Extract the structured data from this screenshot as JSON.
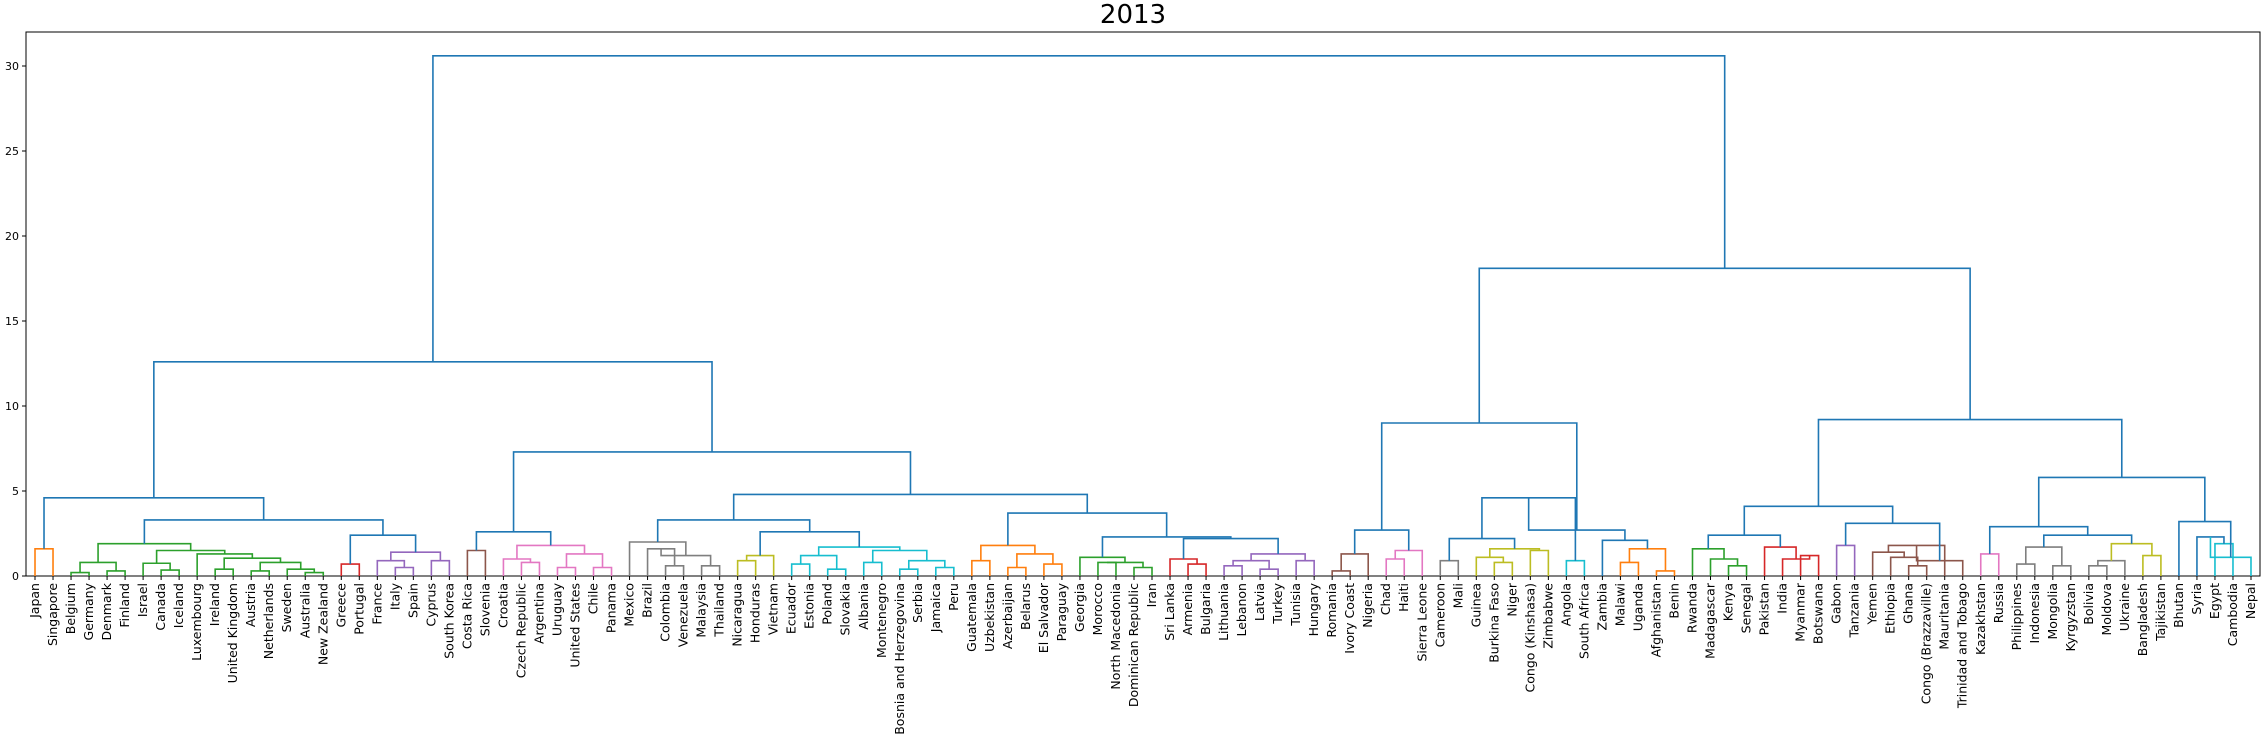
{
  "chart_data": {
    "type": "dendrogram",
    "title": "2013",
    "xlabel": "",
    "ylabel": "",
    "ylim": [
      0,
      32
    ],
    "yticks": [
      0,
      5,
      10,
      15,
      20,
      25,
      30
    ],
    "grid": false,
    "link_color_default": "#1f77b4",
    "cluster_colors": {
      "c1": "#ff7f0e",
      "c2": "#2ca02c",
      "c3": "#d62728",
      "c4": "#9467bd",
      "c5": "#8c564b",
      "c6": "#e377c2",
      "c7": "#7f7f7f",
      "c8": "#bcbd22",
      "c9": "#17becf"
    },
    "leaves": [
      "Japan",
      "Singapore",
      "Belgium",
      "Germany",
      "Denmark",
      "Finland",
      "Israel",
      "Canada",
      "Iceland",
      "Luxembourg",
      "Ireland",
      "United Kingdom",
      "Austria",
      "Netherlands",
      "Sweden",
      "Australia",
      "New Zealand",
      "Greece",
      "Portugal",
      "France",
      "Italy",
      "Spain",
      "Cyprus",
      "South Korea",
      "Costa Rica",
      "Slovenia",
      "Croatia",
      "Czech Republic",
      "Argentina",
      "Uruguay",
      "United States",
      "Chile",
      "Panama",
      "Mexico",
      "Brazil",
      "Colombia",
      "Venezuela",
      "Malaysia",
      "Thailand",
      "Nicaragua",
      "Honduras",
      "Vietnam",
      "Ecuador",
      "Estonia",
      "Poland",
      "Slovakia",
      "Albania",
      "Montenegro",
      "Bosnia and Herzegovina",
      "Serbia",
      "Jamaica",
      "Peru",
      "Guatemala",
      "Uzbekistan",
      "Azerbaijan",
      "Belarus",
      "El Salvador",
      "Paraguay",
      "Georgia",
      "Morocco",
      "North Macedonia",
      "Dominican Republic",
      "Iran",
      "Sri Lanka",
      "Armenia",
      "Bulgaria",
      "Lithuania",
      "Lebanon",
      "Latvia",
      "Turkey",
      "Tunisia",
      "Hungary",
      "Romania",
      "Ivory Coast",
      "Nigeria",
      "Chad",
      "Haiti",
      "Sierra Leone",
      "Cameroon",
      "Mali",
      "Guinea",
      "Burkina Faso",
      "Niger",
      "Congo (Kinshasa)",
      "Zimbabwe",
      "Angola",
      "South Africa",
      "Zambia",
      "Malawi",
      "Uganda",
      "Afghanistan",
      "Benin",
      "Rwanda",
      "Madagascar",
      "Kenya",
      "Senegal",
      "Pakistan",
      "India",
      "Myanmar",
      "Botswana",
      "Gabon",
      "Tanzania",
      "Yemen",
      "Ethiopia",
      "Ghana",
      "Congo (Brazzaville)",
      "Mauritania",
      "Trinidad and Tobago",
      "Kazakhstan",
      "Russia",
      "Philippines",
      "Indonesia",
      "Mongolia",
      "Kyrgyzstan",
      "Bolivia",
      "Moldova",
      "Ukraine",
      "Bangladesh",
      "Tajikistan",
      "Bhutan",
      "Syria",
      "Egypt",
      "Cambodia",
      "Nepal"
    ],
    "merges": [
      [
        "Japan",
        "Singapore",
        1.6,
        "c1"
      ],
      [
        "Belgium",
        "Germany",
        0.2,
        "c2"
      ],
      [
        "Denmark",
        "Finland",
        0.3,
        "c2"
      ],
      [
        "m2",
        "m3",
        0.8,
        "c2"
      ],
      [
        "Canada",
        "Iceland",
        0.35,
        "c2"
      ],
      [
        "Israel",
        "m5",
        0.75,
        "c2"
      ],
      [
        "Ireland",
        "United Kingdom",
        0.4,
        "c2"
      ],
      [
        "Austria",
        "Netherlands",
        0.3,
        "c2"
      ],
      [
        "Australia",
        "New Zealand",
        0.2,
        "c2"
      ],
      [
        "Sweden",
        "m9",
        0.4,
        "c2"
      ],
      [
        "m8",
        "m10",
        0.8,
        "c2"
      ],
      [
        "m7",
        "m11",
        1.05,
        "c2"
      ],
      [
        "Luxembourg",
        "m12",
        1.3,
        "c2"
      ],
      [
        "m6",
        "m13",
        1.5,
        "c2"
      ],
      [
        "m4",
        "m14",
        1.9,
        "c2"
      ],
      [
        "Greece",
        "Portugal",
        0.7,
        "c3"
      ],
      [
        "Italy",
        "Spain",
        0.5,
        "c4"
      ],
      [
        "France",
        "m17",
        0.9,
        "c4"
      ],
      [
        "Cyprus",
        "South Korea",
        0.9,
        "c4"
      ],
      [
        "m18",
        "m19",
        1.4,
        "c4"
      ],
      [
        "m16",
        "m20",
        2.4,
        null
      ],
      [
        "m15",
        "m21",
        3.3,
        null
      ],
      [
        "m1",
        "m22",
        4.6,
        null
      ],
      [
        "Costa Rica",
        "Slovenia",
        1.5,
        "c5"
      ],
      [
        "Czech Republic",
        "Argentina",
        0.8,
        "c6"
      ],
      [
        "Croatia",
        "m25",
        1.0,
        "c6"
      ],
      [
        "Uruguay",
        "United States",
        0.5,
        "c6"
      ],
      [
        "Chile",
        "Panama",
        0.5,
        "c6"
      ],
      [
        "m27",
        "m28",
        1.3,
        "c6"
      ],
      [
        "m26",
        "m29",
        1.8,
        "c6"
      ],
      [
        "m24",
        "m30",
        2.6,
        null
      ],
      [
        "Colombia",
        "Venezuela",
        0.6,
        "c7"
      ],
      [
        "Brazil",
        "m32",
        1.6,
        "c7"
      ],
      [
        "Malaysia",
        "Thailand",
        0.6,
        "c7"
      ],
      [
        "m33",
        "m34",
        1.2,
        "c7"
      ],
      [
        "Mexico",
        "m35",
        2.0,
        "c7"
      ],
      [
        "Nicaragua",
        "Honduras",
        0.9,
        "c8"
      ],
      [
        "Vietnam",
        "m37",
        1.2,
        "c8"
      ],
      [
        "Poland",
        "Slovakia",
        0.4,
        "c9"
      ],
      [
        "Ecuador",
        "Estonia",
        0.7,
        "c9"
      ],
      [
        "m40",
        "m39",
        1.2,
        "c9"
      ],
      [
        "Albania",
        "Montenegro",
        0.8,
        "c9"
      ],
      [
        "Jamaica",
        "Peru",
        0.5,
        "c9"
      ],
      [
        "Bosnia and Herzegovina",
        "Serbia",
        0.4,
        "c9"
      ],
      [
        "m44",
        "m43",
        0.9,
        "c9"
      ],
      [
        "m42",
        "m45",
        1.5,
        "c9"
      ],
      [
        "m41",
        "m46",
        1.7,
        "c9"
      ],
      [
        "m38",
        "m47",
        2.6,
        null
      ],
      [
        "m36",
        "m48",
        3.3,
        null
      ],
      [
        "Guatemala",
        "Uzbekistan",
        0.9,
        "c1"
      ],
      [
        "Azerbaijan",
        "Belarus",
        0.5,
        "c1"
      ],
      [
        "El Salvador",
        "Paraguay",
        0.7,
        "c1"
      ],
      [
        "m51",
        "m52",
        1.3,
        "c1"
      ],
      [
        "m50",
        "m53",
        1.8,
        "c1"
      ],
      [
        "Morocco",
        "North Macedonia",
        0.8,
        "c2"
      ],
      [
        "Dominican Republic",
        "Iran",
        0.5,
        "c2"
      ],
      [
        "m55",
        "m56",
        0.8,
        "c2"
      ],
      [
        "Georgia",
        "m57",
        1.1,
        "c2"
      ],
      [
        "Armenia",
        "Bulgaria",
        0.7,
        "c3"
      ],
      [
        "Sri Lanka",
        "m59",
        1.0,
        "c3"
      ],
      [
        "Lithuania",
        "Lebanon",
        0.6,
        "c4"
      ],
      [
        "Latvia",
        "Turkey",
        0.4,
        "c4"
      ],
      [
        "m61",
        "m62",
        0.9,
        "c4"
      ],
      [
        "Tunisia",
        "Hungary",
        0.9,
        "c4"
      ],
      [
        "m63",
        "m64",
        1.3,
        "c4"
      ],
      [
        "m60",
        "m65",
        2.2,
        null
      ],
      [
        "m58",
        "m66",
        2.3,
        null
      ],
      [
        "m54",
        "m67",
        3.7,
        null
      ],
      [
        "m49",
        "m68",
        4.8,
        null
      ],
      [
        "m31",
        "m69",
        7.3,
        null
      ],
      [
        "m23",
        "m70",
        12.6,
        null
      ],
      [
        "Romania",
        "Ivory Coast",
        0.3,
        "c5"
      ],
      [
        "Nigeria",
        "m72",
        1.3,
        "c5"
      ],
      [
        "Chad",
        "Haiti",
        1.0,
        "c6"
      ],
      [
        "Sierra Leone",
        "m74",
        1.5,
        "c6"
      ],
      [
        "m73",
        "m75",
        2.7,
        null
      ],
      [
        "Cameroon",
        "Mali",
        0.9,
        "c7"
      ],
      [
        "Burkina Faso",
        "Niger",
        0.8,
        "c8"
      ],
      [
        "Guinea",
        "m78",
        1.1,
        "c8"
      ],
      [
        "Congo (Kinshasa)",
        "Zimbabwe",
        1.5,
        "c8"
      ],
      [
        "m79",
        "m80",
        1.6,
        "c8"
      ],
      [
        "m77",
        "m81",
        2.2,
        null
      ],
      [
        "Angola",
        "South Africa",
        0.9,
        "c9"
      ],
      [
        "m82",
        "m83",
        4.6,
        null
      ],
      [
        "Malawi",
        "Uganda",
        0.8,
        "c1"
      ],
      [
        "Afghanistan",
        "Benin",
        0.3,
        "c1"
      ],
      [
        "m85",
        "m86",
        1.6,
        "c1"
      ],
      [
        "Zambia",
        "m87",
        2.1,
        null
      ],
      [
        "m84",
        "m88",
        2.7,
        null
      ],
      [
        "m76",
        "m89",
        9.0,
        null
      ],
      [
        "Kenya",
        "Senegal",
        0.6,
        "c2"
      ],
      [
        "Madagascar",
        "m91",
        1.0,
        "c2"
      ],
      [
        "Rwanda",
        "m92",
        1.6,
        "c2"
      ],
      [
        "Myanmar",
        "Botswana",
        1.2,
        "c3"
      ],
      [
        "India",
        "m94",
        1.0,
        "c3"
      ],
      [
        "Pakistan",
        "m95",
        1.7,
        "c3"
      ],
      [
        "m93",
        "m96",
        2.4,
        null
      ],
      [
        "Gabon",
        "Tanzania",
        1.8,
        "c4"
      ],
      [
        "Ghana",
        "Congo (Brazzaville)",
        0.6,
        "c5"
      ],
      [
        "Ethiopia",
        "m99",
        1.1,
        "c5"
      ],
      [
        "Yemen",
        "m100",
        1.4,
        "c5"
      ],
      [
        "m101",
        "Mauritania",
        1.8,
        "c5"
      ],
      [
        "m102",
        "Trinidad and Tobago",
        0.9,
        "c5"
      ],
      [
        "m98",
        "m103",
        3.1,
        null
      ],
      [
        "m97",
        "m104",
        4.1,
        null
      ],
      [
        "Kazakhstan",
        "Russia",
        1.3,
        "c6"
      ],
      [
        "Philippines",
        "Indonesia",
        0.7,
        "c7"
      ],
      [
        "Mongolia",
        "Kyrgyzstan",
        0.6,
        "c7"
      ],
      [
        "m107",
        "m108",
        1.7,
        "c7"
      ],
      [
        "Bolivia",
        "Moldova",
        0.6,
        "c7"
      ],
      [
        "Ukraine",
        "m110",
        0.9,
        "c7"
      ],
      [
        "Bangladesh",
        "Tajikistan",
        1.2,
        "c8"
      ],
      [
        "m111",
        "m112",
        1.9,
        "c8"
      ],
      [
        "m109",
        "m113",
        2.4,
        null
      ],
      [
        "m106",
        "m114",
        2.9,
        null
      ],
      [
        "Egypt",
        "Cambodia",
        1.9,
        "c9"
      ],
      [
        "Syria",
        "m116",
        2.3,
        null
      ],
      [
        "m117",
        "Nepal",
        1.1,
        "c9"
      ],
      [
        "Bhutan",
        "m118",
        3.2,
        null
      ],
      [
        "m115",
        "m119",
        5.8,
        null
      ],
      [
        "m105",
        "m120",
        9.2,
        null
      ],
      [
        "m90",
        "m121",
        18.1,
        null
      ],
      [
        "m71",
        "m122",
        30.6,
        null
      ]
    ]
  }
}
